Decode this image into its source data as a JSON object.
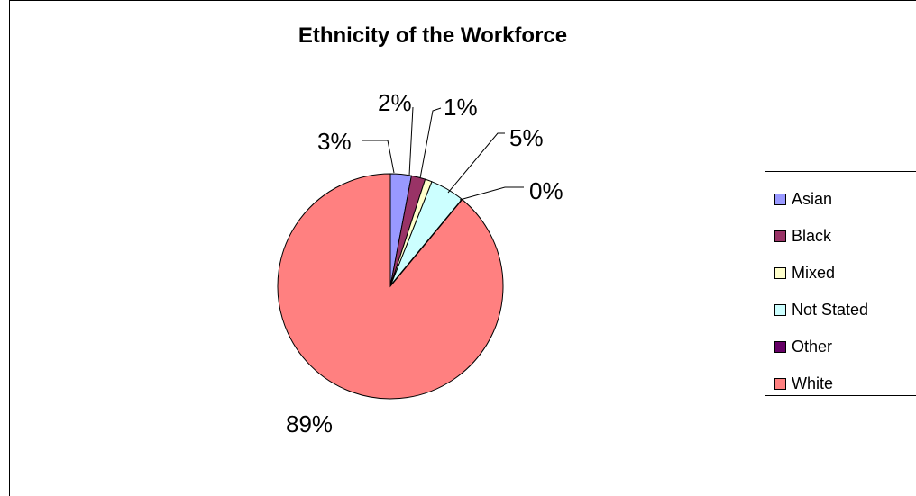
{
  "chart_data": {
    "type": "pie",
    "title": "Ethnicity of the Workforce",
    "categories": [
      "Asian",
      "Black",
      "Mixed",
      "Not Stated",
      "Other",
      "White"
    ],
    "values": [
      3,
      2,
      1,
      5,
      0,
      89
    ],
    "data_labels": [
      "3%",
      "2%",
      "1%",
      "5%",
      "0%",
      "89%"
    ],
    "colors": [
      "#9999FF",
      "#993366",
      "#FFFFCC",
      "#CCFFFF",
      "#660066",
      "#FF8080"
    ],
    "legend_position": "right"
  }
}
